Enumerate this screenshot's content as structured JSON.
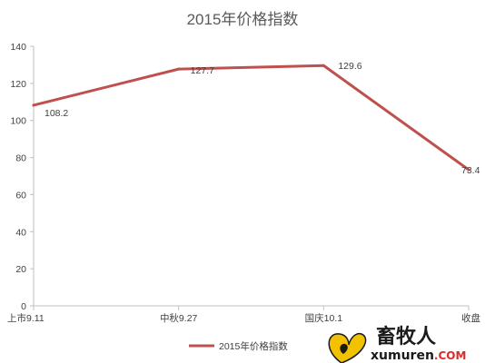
{
  "chart_data": {
    "type": "line",
    "title": "2015年价格指数",
    "categories": [
      "上市9.11",
      "中秋9.27",
      "国庆10.1",
      "收盘"
    ],
    "series": [
      {
        "name": "2015年价格指数",
        "values": [
          108.2,
          127.7,
          129.6,
          73.4
        ],
        "color": "#c0504d"
      }
    ],
    "data_labels": [
      "108.2",
      "127.7",
      "129.6",
      "73.4"
    ],
    "y_ticks": [
      "0",
      "20",
      "40",
      "60",
      "80",
      "100",
      "120",
      "140"
    ],
    "ylim": [
      0,
      140
    ],
    "grid": false,
    "legend_position": "bottom"
  },
  "watermark": {
    "chinese": "畜牧人",
    "domain_main": "xumuren",
    "domain_suffix": ".COM",
    "icon": "heart-drop-logo-icon",
    "accent_color": "#d92b2b",
    "logo_color": "#f2c200"
  }
}
